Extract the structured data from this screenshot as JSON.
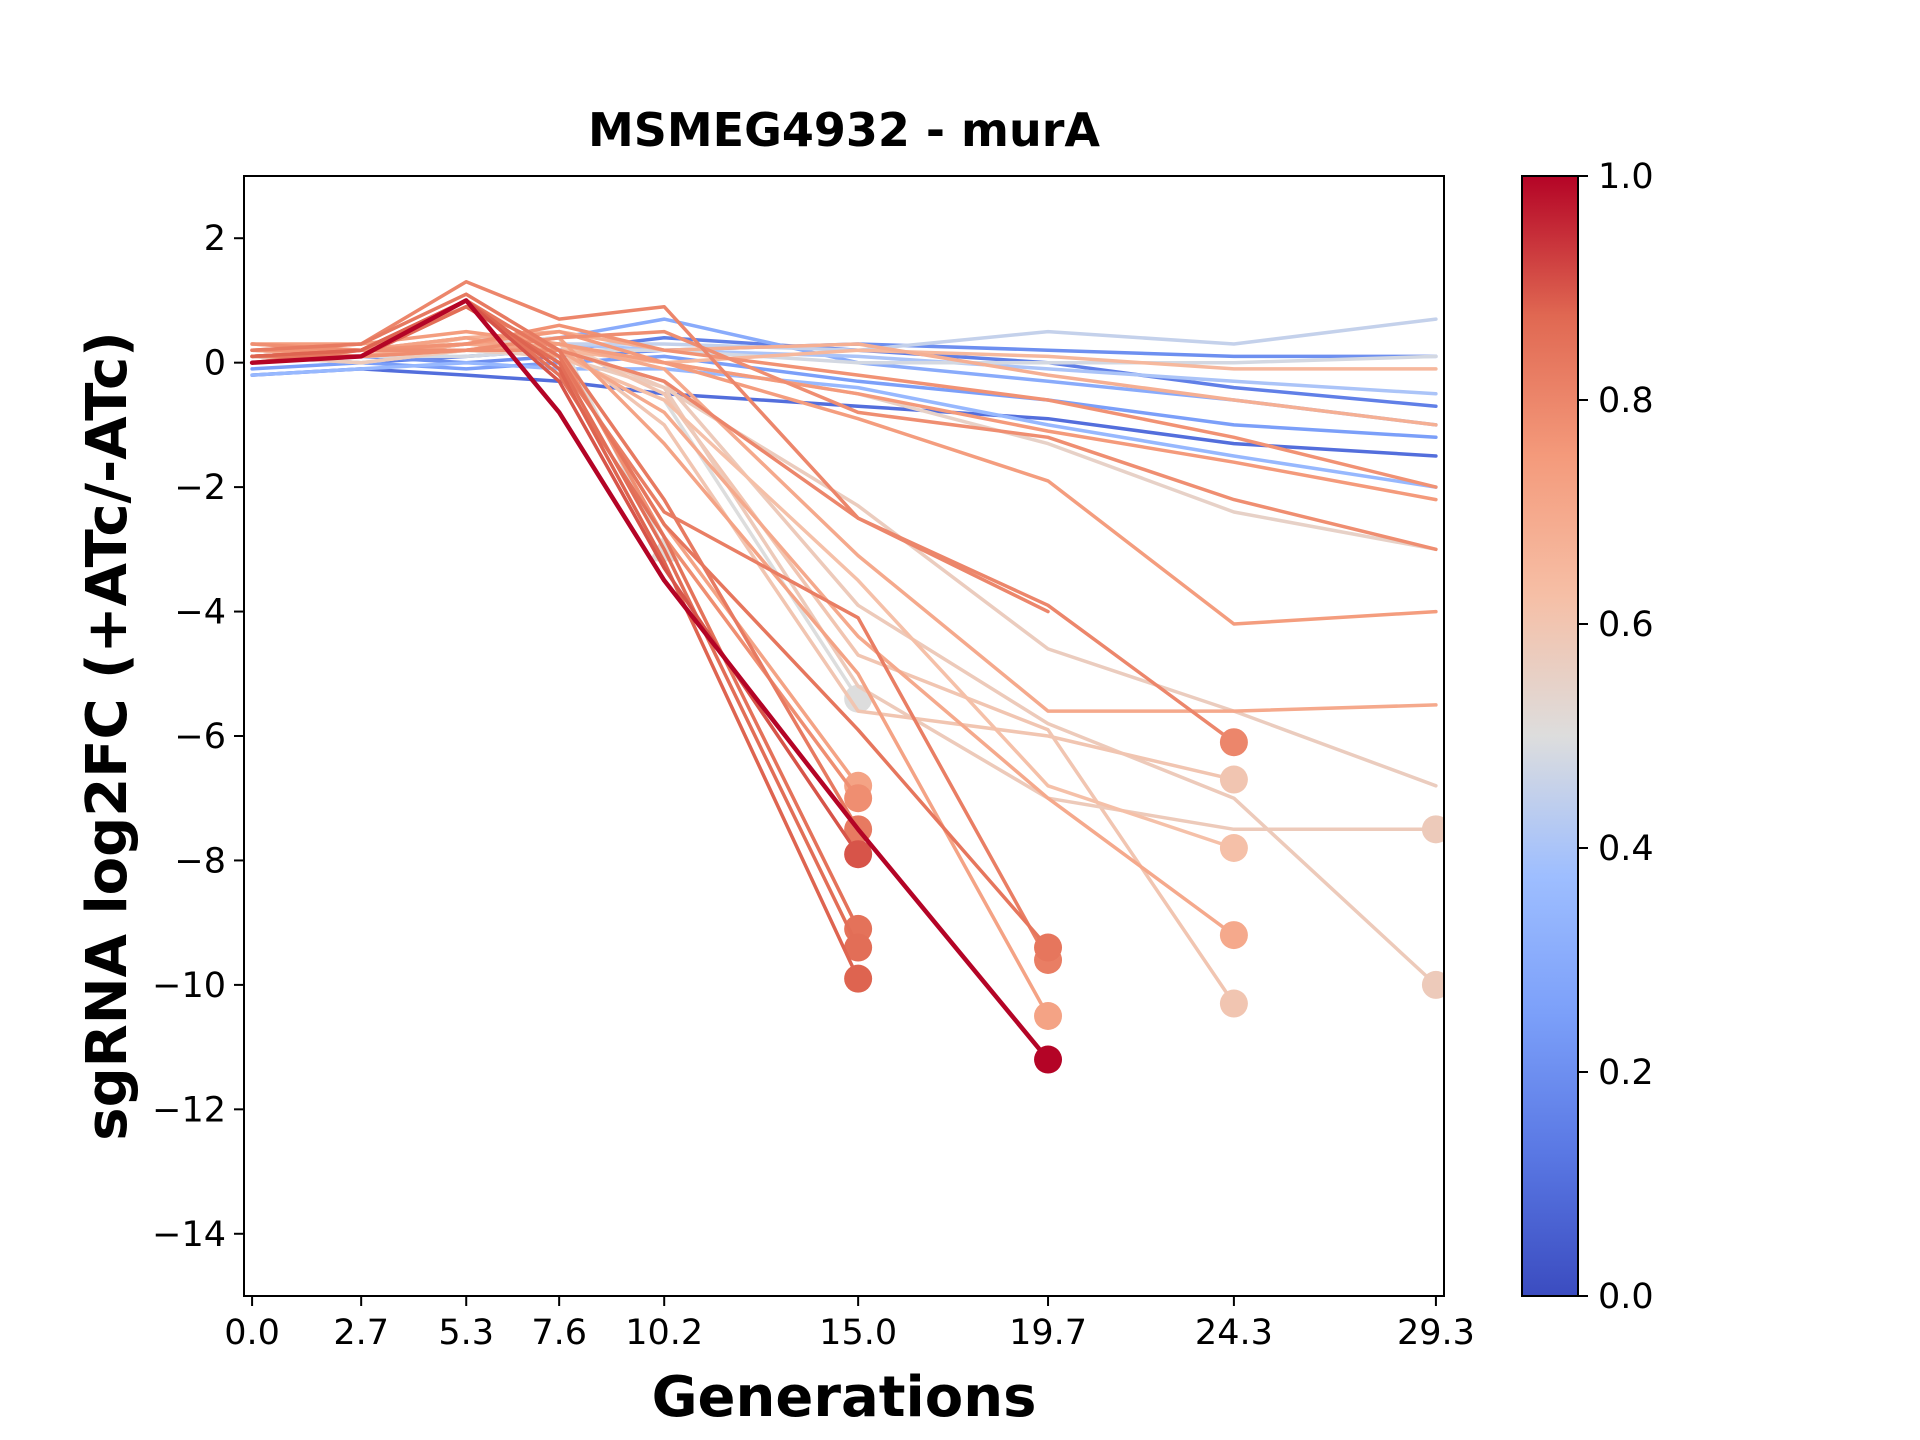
{
  "chart_data": {
    "type": "line",
    "title": "MSMEG4932 - murA",
    "xlabel": "Generations",
    "ylabel": "sgRNA log2FC (+ATc/-ATc)",
    "x_ticks": [
      "0.0",
      "2.7",
      "5.3",
      "7.6",
      "10.2",
      "15.0",
      "19.7",
      "24.3",
      "29.3"
    ],
    "y_ticks": [
      2,
      0,
      -2,
      -4,
      -6,
      -8,
      -10,
      -12,
      -14
    ],
    "y_tick_labels": [
      "2",
      "0",
      "−2",
      "−4",
      "−6",
      "−8",
      "−10",
      "−12",
      "−14"
    ],
    "xlim": [
      -0.2,
      29.5
    ],
    "ylim": [
      -15,
      3
    ],
    "grid": false,
    "colorbar": {
      "colormap": "coolwarm",
      "range": [
        0.0,
        1.0
      ],
      "ticks": [
        "0.0",
        "0.2",
        "0.4",
        "0.6",
        "0.8",
        "1.0"
      ]
    },
    "series": [
      {
        "color_value": 0.1,
        "x": [
          0,
          2.7,
          5.3,
          7.6,
          10.2,
          15.0,
          19.7,
          24.3,
          29.3
        ],
        "y": [
          -0.2,
          -0.1,
          -0.2,
          -0.3,
          -0.5,
          -0.7,
          -0.9,
          -1.3,
          -1.5
        ]
      },
      {
        "color_value": 0.15,
        "x": [
          0,
          2.7,
          5.3,
          7.6,
          10.2,
          15.0,
          19.7,
          24.3,
          29.3
        ],
        "y": [
          0.1,
          0.0,
          0.1,
          0.2,
          0.4,
          0.2,
          0.0,
          -0.4,
          -0.7
        ]
      },
      {
        "color_value": 0.2,
        "x": [
          0,
          2.7,
          5.3,
          7.6,
          10.2,
          15.0,
          19.7,
          24.3,
          29.3
        ],
        "y": [
          0.0,
          0.1,
          0.0,
          0.1,
          0.2,
          0.3,
          0.2,
          0.1,
          0.1
        ]
      },
      {
        "color_value": 0.25,
        "x": [
          0,
          2.7,
          5.3,
          7.6,
          10.2,
          15.0,
          19.7,
          24.3,
          29.3
        ],
        "y": [
          -0.1,
          0.0,
          -0.1,
          0.0,
          0.1,
          -0.3,
          -0.6,
          -1.0,
          -1.2
        ]
      },
      {
        "color_value": 0.3,
        "x": [
          0,
          2.7,
          5.3,
          7.6,
          10.2,
          15.0,
          19.7,
          24.3,
          29.3
        ],
        "y": [
          0.2,
          0.1,
          0.3,
          0.4,
          0.7,
          0.0,
          -0.3,
          -0.6,
          -1.0
        ]
      },
      {
        "color_value": 0.35,
        "x": [
          0,
          2.7,
          5.3,
          7.6,
          10.2,
          15.0,
          19.7,
          24.3,
          29.3
        ],
        "y": [
          -0.2,
          -0.1,
          0.0,
          -0.1,
          -0.1,
          -0.4,
          -1.0,
          -1.5,
          -2.0
        ]
      },
      {
        "color_value": 0.4,
        "x": [
          0,
          2.7,
          5.3,
          7.6,
          10.2,
          15.0,
          19.7,
          24.3,
          29.3
        ],
        "y": [
          0.0,
          0.1,
          0.2,
          0.3,
          0.2,
          0.1,
          -0.1,
          -0.3,
          -0.5
        ]
      },
      {
        "color_value": 0.45,
        "x": [
          0,
          2.7,
          5.3,
          7.6,
          10.2,
          15.0,
          19.7,
          24.3,
          29.3
        ],
        "y": [
          0.1,
          0.2,
          0.4,
          0.3,
          0.3,
          0.2,
          0.5,
          0.3,
          0.7
        ]
      },
      {
        "color_value": 0.48,
        "x": [
          0,
          2.7,
          5.3,
          7.6,
          10.2,
          15.0,
          19.7,
          24.3,
          29.3
        ],
        "y": [
          0.0,
          0.1,
          0.1,
          0.2,
          0.2,
          0.0,
          0.0,
          0.0,
          0.1
        ]
      },
      {
        "color_value": 0.5,
        "x": [
          0,
          2.7,
          5.3,
          7.6,
          10.2,
          15.0
        ],
        "y": [
          0.1,
          0.0,
          0.2,
          0.1,
          -0.6,
          -5.4
        ],
        "end_marker": "circle"
      },
      {
        "color_value": 0.52,
        "x": [
          0,
          2.7,
          5.3,
          7.6,
          10.2
        ],
        "y": [
          0.0,
          0.1,
          0.3,
          0.4,
          -3.0
        ],
        "end_marker": "triangle"
      },
      {
        "color_value": 0.55,
        "x": [
          0,
          2.7,
          5.3,
          7.6,
          10.2,
          15.0,
          19.7,
          24.3,
          29.3
        ],
        "y": [
          0.2,
          0.1,
          0.4,
          0.2,
          0.0,
          -0.5,
          -1.3,
          -2.4,
          -3.0
        ]
      },
      {
        "color_value": 0.57,
        "x": [
          0,
          2.7,
          5.3,
          7.6,
          10.2,
          15.0,
          19.7,
          24.3,
          29.3
        ],
        "y": [
          0.1,
          0.2,
          0.2,
          0.1,
          -0.4,
          -2.3,
          -4.6,
          -5.6,
          -6.8
        ]
      },
      {
        "color_value": 0.58,
        "x": [
          0,
          2.7,
          5.3,
          7.6,
          10.2,
          15.0,
          19.7,
          24.3,
          29.3
        ],
        "y": [
          0.0,
          0.1,
          0.3,
          0.2,
          -0.3,
          -3.9,
          -5.8,
          -7.0,
          -10.0
        ],
        "end_marker": "circle"
      },
      {
        "color_value": 0.6,
        "x": [
          0,
          2.7,
          5.3,
          7.6,
          10.2,
          15.0,
          19.7,
          24.3
        ],
        "y": [
          0.2,
          0.2,
          0.3,
          0.3,
          -0.5,
          -4.7,
          -5.9,
          -10.3
        ],
        "end_marker": "circle"
      },
      {
        "color_value": 0.58,
        "x": [
          0,
          2.7,
          5.3,
          7.6,
          10.2,
          15.0,
          19.7,
          24.3,
          29.3
        ],
        "y": [
          0.1,
          0.0,
          0.2,
          0.3,
          -0.4,
          -5.2,
          -7.0,
          -7.5,
          -7.5
        ],
        "end_marker": "circle"
      },
      {
        "color_value": 0.6,
        "x": [
          0,
          2.7,
          5.3,
          7.6,
          10.2,
          15.0,
          19.7,
          24.3
        ],
        "y": [
          0.1,
          0.1,
          0.2,
          0.3,
          -1.0,
          -5.6,
          -6.0,
          -6.7
        ],
        "end_marker": "circle"
      },
      {
        "color_value": 0.62,
        "x": [
          0,
          2.7,
          5.3,
          7.6,
          10.2,
          15.0,
          19.7,
          24.3
        ],
        "y": [
          0.2,
          0.1,
          0.4,
          0.1,
          -0.6,
          -3.5,
          -6.8,
          -7.8
        ],
        "end_marker": "circle"
      },
      {
        "color_value": 0.65,
        "x": [
          0,
          2.7,
          5.3,
          7.6,
          10.2,
          15.0,
          19.7,
          24.3,
          29.3
        ],
        "y": [
          0.0,
          0.2,
          0.2,
          0.2,
          0.0,
          0.2,
          0.1,
          -0.1,
          -0.1
        ]
      },
      {
        "color_value": 0.68,
        "x": [
          0,
          2.7,
          5.3,
          7.6,
          10.2,
          15.0,
          19.7,
          24.3,
          29.3
        ],
        "y": [
          0.3,
          0.2,
          0.4,
          0.5,
          0.2,
          0.3,
          -0.2,
          -0.6,
          -1.0
        ]
      },
      {
        "color_value": 0.7,
        "x": [
          0,
          2.7,
          5.3,
          7.6,
          10.2,
          15.0,
          19.7,
          24.3,
          29.3
        ],
        "y": [
          0.1,
          0.1,
          0.2,
          0.3,
          -0.1,
          -3.1,
          -5.6,
          -5.6,
          -5.5
        ]
      },
      {
        "color_value": 0.7,
        "x": [
          0,
          2.7,
          5.3,
          7.6,
          10.2,
          15.0,
          19.7,
          24.3
        ],
        "y": [
          0.2,
          0.1,
          0.3,
          0.2,
          -0.8,
          -4.4,
          -7.0,
          -9.2
        ],
        "end_marker": "circle"
      },
      {
        "color_value": 0.72,
        "x": [
          0,
          2.7,
          5.3,
          7.6,
          10.2,
          15.0,
          19.7
        ],
        "y": [
          0.0,
          0.1,
          0.2,
          0.4,
          -1.3,
          -5.0,
          -10.5
        ],
        "end_marker": "circle"
      },
      {
        "color_value": 0.72,
        "x": [
          0,
          2.7,
          5.3,
          7.6,
          10.2,
          15.0
        ],
        "y": [
          0.2,
          0.2,
          0.4,
          0.1,
          -2.6,
          -6.8
        ],
        "end_marker": "circle"
      },
      {
        "color_value": 0.74,
        "x": [
          0,
          2.7,
          5.3,
          7.6,
          10.2,
          15.0,
          19.7,
          24.3,
          29.3
        ],
        "y": [
          0.3,
          0.3,
          0.5,
          0.3,
          0.0,
          -0.9,
          -1.9,
          -4.2,
          -4.0
        ]
      },
      {
        "color_value": 0.75,
        "x": [
          0,
          2.7,
          5.3,
          7.6,
          10.2,
          15.0,
          19.7,
          24.3,
          29.3
        ],
        "y": [
          0.1,
          0.2,
          0.3,
          0.5,
          0.0,
          -0.5,
          -1.1,
          -1.6,
          -2.2
        ]
      },
      {
        "color_value": 0.77,
        "x": [
          0,
          2.7,
          5.3,
          7.6,
          10.2,
          15.0,
          19.7,
          24.3,
          29.3
        ],
        "y": [
          0.2,
          0.2,
          0.3,
          0.6,
          0.2,
          -0.2,
          -0.6,
          -1.2,
          -2.0
        ]
      },
      {
        "color_value": 0.78,
        "x": [
          0,
          2.7,
          5.3,
          7.6,
          10.2,
          15.0,
          19.7,
          24.3,
          29.3
        ],
        "y": [
          0.3,
          0.2,
          0.2,
          0.4,
          0.5,
          -0.8,
          -1.2,
          -2.2,
          -3.0
        ]
      },
      {
        "color_value": 0.78,
        "x": [
          0,
          2.7,
          5.3,
          7.6,
          10.2,
          15.0
        ],
        "y": [
          0.0,
          0.1,
          0.2,
          0.2,
          -2.8,
          -7.0
        ],
        "end_marker": "circle"
      },
      {
        "color_value": 0.8,
        "x": [
          0,
          2.7,
          5.3,
          7.6,
          10.2,
          15.0,
          19.7
        ],
        "y": [
          0.2,
          0.3,
          1.3,
          0.7,
          0.9,
          -2.5,
          -4.0
        ],
        "end_marker": null
      },
      {
        "color_value": 0.8,
        "x": [
          0,
          2.7,
          5.3,
          7.6,
          10.2,
          15.0,
          19.7,
          24.3
        ],
        "y": [
          0.1,
          0.2,
          0.9,
          0.2,
          -0.3,
          -2.5,
          -3.9,
          -6.1
        ],
        "end_marker": "circle"
      },
      {
        "color_value": 0.82,
        "x": [
          0,
          2.7,
          5.3,
          7.6,
          10.2,
          15.0,
          19.7
        ],
        "y": [
          0.1,
          0.1,
          0.9,
          0.0,
          -2.4,
          -4.1,
          -9.6
        ],
        "end_marker": "circle"
      },
      {
        "color_value": 0.83,
        "x": [
          0,
          2.7,
          5.3,
          7.6,
          10.2,
          15.0
        ],
        "y": [
          0.2,
          0.3,
          1.1,
          0.2,
          -2.2,
          -7.5
        ],
        "end_marker": "circle"
      },
      {
        "color_value": 0.84,
        "x": [
          0,
          2.7,
          5.3,
          7.6,
          10.2,
          15.0,
          19.7
        ],
        "y": [
          0.0,
          0.2,
          1.0,
          0.1,
          -2.6,
          -5.9,
          -9.4
        ],
        "end_marker": "circle"
      },
      {
        "color_value": 0.85,
        "x": [
          0,
          2.7,
          5.3,
          7.6,
          10.2,
          15.0
        ],
        "y": [
          0.1,
          0.2,
          1.0,
          -0.2,
          -2.8,
          -9.1
        ],
        "end_marker": "circle"
      },
      {
        "color_value": 0.86,
        "x": [
          0,
          2.7,
          5.3,
          7.6,
          10.2,
          15.0
        ],
        "y": [
          0.0,
          0.1,
          0.9,
          0.0,
          -3.0,
          -9.4
        ],
        "end_marker": "circle"
      },
      {
        "color_value": 0.88,
        "x": [
          0,
          2.7,
          5.3,
          7.6,
          10.2,
          15.0
        ],
        "y": [
          0.1,
          0.2,
          1.0,
          -0.1,
          -3.2,
          -9.9
        ],
        "end_marker": "circle"
      },
      {
        "color_value": 0.9,
        "x": [
          0,
          2.7,
          5.3,
          7.6,
          10.2,
          15.0
        ],
        "y": [
          0.0,
          0.1,
          1.0,
          -0.3,
          -3.3,
          -7.9
        ],
        "end_marker": "circle"
      },
      {
        "color_value": 1.0,
        "x": [
          0,
          2.7,
          5.3,
          7.6,
          10.2,
          15.0,
          19.7
        ],
        "y": [
          0.0,
          0.1,
          1.0,
          -0.8,
          -3.5,
          -7.5,
          -11.2
        ],
        "end_marker": "circle"
      }
    ]
  }
}
